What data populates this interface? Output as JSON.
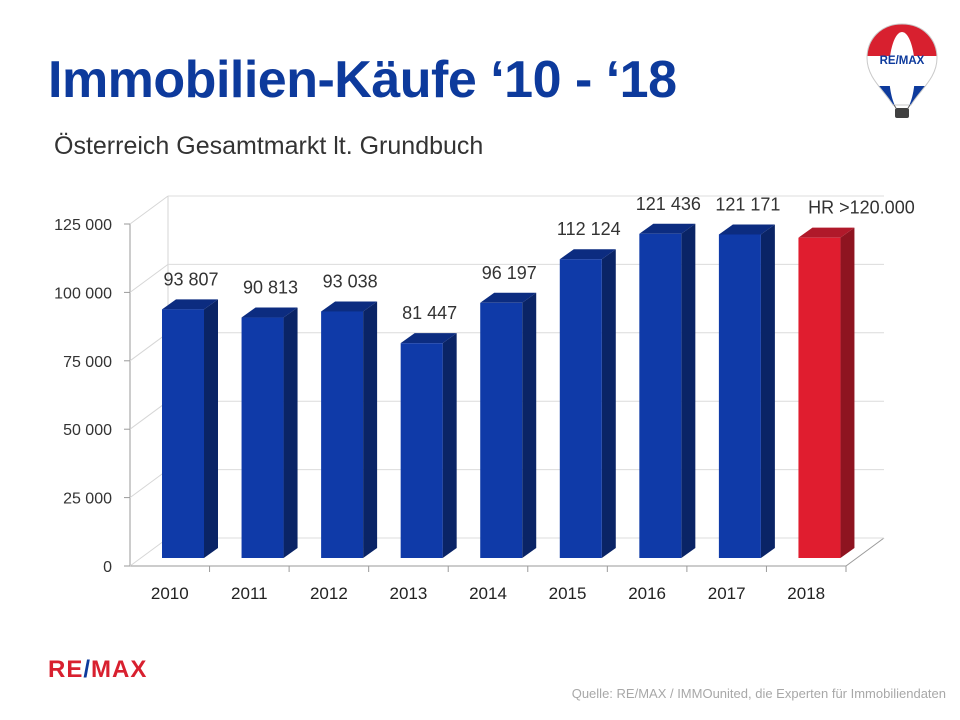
{
  "header": {
    "title": "Immobilien-Käufe ‘10 - ‘18",
    "subtitle": "Österreich Gesamtmarkt lt. Grundbuch"
  },
  "logo": {
    "balloon_text": "RE/MAX",
    "footer_left": "RE",
    "footer_slash": "/",
    "footer_right": "MAX"
  },
  "colors": {
    "primary_blue": "#0d3a9c",
    "highlight_red": "#d8202f",
    "bar_blue_front": "#0f3aa8",
    "bar_red_front": "#e01d2f"
  },
  "footer": {
    "source": "Quelle: RE/MAX / IMMOunited, die Experten für Immobiliendaten"
  },
  "chart_data": {
    "type": "bar",
    "categories": [
      "2010",
      "2011",
      "2012",
      "2013",
      "2014",
      "2015",
      "2016",
      "2017",
      "2018"
    ],
    "values": [
      93807,
      90813,
      93038,
      81447,
      96197,
      112124,
      121436,
      121171,
      120000
    ],
    "data_labels": [
      "93 807",
      "90 813",
      "93 038",
      "81 447",
      "96 197",
      "112 124",
      "121 436",
      "121 171",
      "HR >120.000"
    ],
    "highlight_index": 8,
    "yticks": [
      0,
      25000,
      50000,
      75000,
      100000,
      125000
    ],
    "ytick_labels": [
      "0",
      "25 000",
      "50 000",
      "75 000",
      "100 000",
      "125 000"
    ],
    "ylim": [
      0,
      125000
    ],
    "grid": true,
    "title": "",
    "xlabel": "",
    "ylabel": ""
  }
}
